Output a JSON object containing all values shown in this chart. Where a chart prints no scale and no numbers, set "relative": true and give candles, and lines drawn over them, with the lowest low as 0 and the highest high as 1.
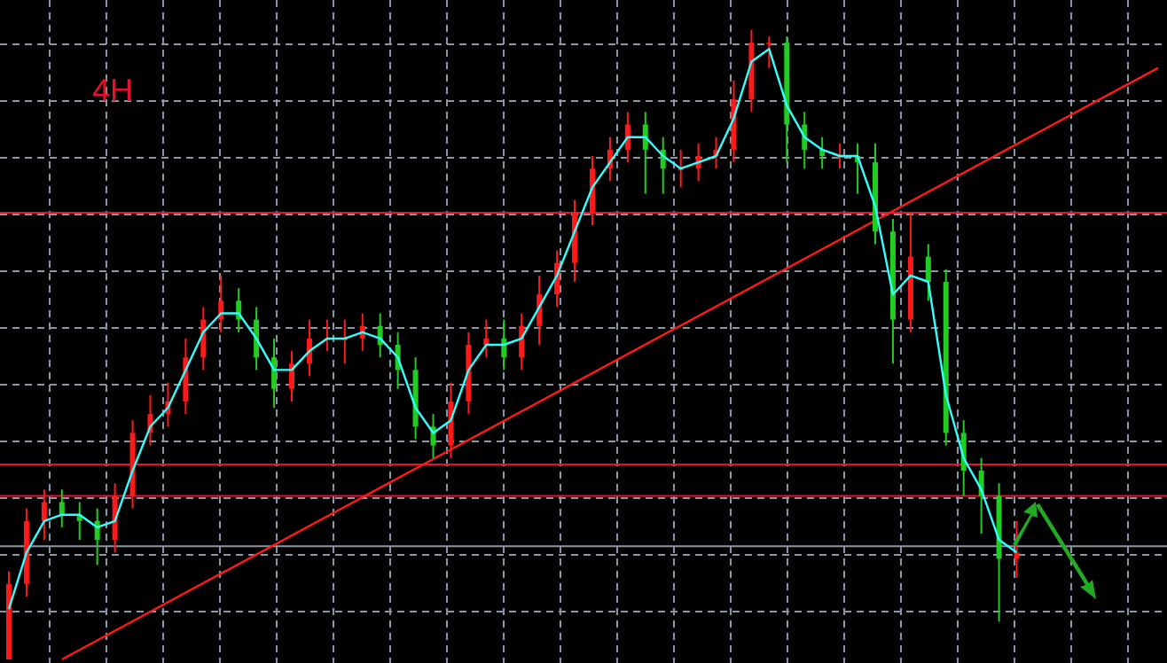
{
  "chart_data": {
    "type": "candlestick",
    "relative": true,
    "grid": true,
    "annotations": [
      "4H"
    ],
    "categories": [
      null,
      null,
      null,
      null,
      null,
      null,
      null,
      null,
      null,
      null,
      null,
      null,
      null,
      null,
      null,
      null,
      null,
      null,
      null,
      null,
      null,
      null,
      null,
      null,
      null,
      null,
      null,
      null,
      null,
      null,
      null,
      null,
      null,
      null,
      null,
      null,
      null,
      null,
      null,
      null,
      null,
      null,
      null,
      null,
      null,
      null,
      null,
      null,
      null,
      null,
      null,
      null,
      null,
      null,
      null,
      null,
      null,
      null,
      null,
      null,
      null,
      null,
      null,
      null,
      null,
      null
    ],
    "ohlc": [
      [
        0,
        0.14,
        0,
        0.12
      ],
      [
        0.12,
        0.24,
        0.1,
        0.22
      ],
      [
        0.22,
        0.27,
        0.19,
        0.25
      ],
      [
        0.25,
        0.27,
        0.21,
        0.23
      ],
      [
        0.23,
        0.25,
        0.19,
        0.22
      ],
      [
        0.22,
        0.24,
        0.15,
        0.19
      ],
      [
        0.19,
        0.28,
        0.17,
        0.26
      ],
      [
        0.26,
        0.38,
        0.24,
        0.36
      ],
      [
        0.36,
        0.42,
        0.34,
        0.39
      ],
      [
        0.39,
        0.44,
        0.37,
        0.41
      ],
      [
        0.41,
        0.51,
        0.39,
        0.48
      ],
      [
        0.48,
        0.56,
        0.46,
        0.54
      ],
      [
        0.54,
        0.61,
        0.52,
        0.57
      ],
      [
        0.57,
        0.59,
        0.52,
        0.54
      ],
      [
        0.54,
        0.56,
        0.46,
        0.48
      ],
      [
        0.48,
        0.51,
        0.4,
        0.43
      ],
      [
        0.43,
        0.49,
        0.41,
        0.47
      ],
      [
        0.47,
        0.54,
        0.45,
        0.51
      ],
      [
        0.51,
        0.54,
        0.49,
        0.51
      ],
      [
        0.51,
        0.54,
        0.47,
        0.51
      ],
      [
        0.51,
        0.55,
        0.49,
        0.53
      ],
      [
        0.53,
        0.55,
        0.48,
        0.5
      ],
      [
        0.5,
        0.52,
        0.43,
        0.46
      ],
      [
        0.46,
        0.48,
        0.35,
        0.37
      ],
      [
        0.37,
        0.39,
        0.32,
        0.34
      ],
      [
        0.34,
        0.44,
        0.32,
        0.41
      ],
      [
        0.41,
        0.52,
        0.39,
        0.5
      ],
      [
        0.5,
        0.54,
        0.48,
        0.51
      ],
      [
        0.51,
        0.54,
        0.46,
        0.48
      ],
      [
        0.48,
        0.55,
        0.46,
        0.53
      ],
      [
        0.53,
        0.61,
        0.5,
        0.58
      ],
      [
        0.58,
        0.65,
        0.56,
        0.63
      ],
      [
        0.63,
        0.73,
        0.6,
        0.71
      ],
      [
        0.71,
        0.8,
        0.69,
        0.78
      ],
      [
        0.78,
        0.83,
        0.76,
        0.81
      ],
      [
        0.81,
        0.87,
        0.79,
        0.85
      ],
      [
        0.85,
        0.87,
        0.74,
        0.81
      ],
      [
        0.81,
        0.83,
        0.74,
        0.78
      ],
      [
        0.78,
        0.81,
        0.75,
        0.78
      ],
      [
        0.78,
        0.82,
        0.76,
        0.8
      ],
      [
        0.8,
        0.83,
        0.78,
        0.81
      ],
      [
        0.81,
        0.92,
        0.79,
        0.89
      ],
      [
        0.89,
        1,
        0.87,
        0.98
      ],
      [
        0.98,
        0.99,
        0.94,
        0.98
      ],
      [
        0.98,
        0.99,
        0.79,
        0.85
      ],
      [
        0.85,
        0.87,
        0.78,
        0.81
      ],
      [
        0.81,
        0.83,
        0.78,
        0.8
      ],
      [
        0.8,
        0.82,
        0.78,
        0.8
      ],
      [
        0.8,
        0.82,
        0.74,
        0.79
      ],
      [
        0.79,
        0.82,
        0.66,
        0.68
      ],
      [
        0.68,
        0.7,
        0.47,
        0.54
      ],
      [
        0.54,
        0.71,
        0.52,
        0.64
      ],
      [
        0.64,
        0.66,
        0.57,
        0.6
      ],
      [
        0.6,
        0.62,
        0.34,
        0.36
      ],
      [
        0.36,
        0.38,
        0.26,
        0.3
      ],
      [
        0.3,
        0.32,
        0.2,
        0.26
      ],
      [
        0.26,
        0.28,
        0.06,
        0.16
      ],
      [
        0.16,
        0.22,
        0.13,
        0.17
      ],
      null,
      null,
      null,
      null,
      null,
      null,
      null,
      null
    ],
    "series": [
      {
        "type": "line",
        "color": "#33ffff",
        "values": [
          0.08,
          0.17,
          0.22,
          0.23,
          0.23,
          0.21,
          0.22,
          0.3,
          0.37,
          0.4,
          0.46,
          0.52,
          0.55,
          0.55,
          0.51,
          0.46,
          0.46,
          0.49,
          0.51,
          0.51,
          0.52,
          0.51,
          0.48,
          0.4,
          0.36,
          0.38,
          0.46,
          0.5,
          0.5,
          0.51,
          0.56,
          0.61,
          0.68,
          0.75,
          0.79,
          0.83,
          0.83,
          0.8,
          0.78,
          0.79,
          0.8,
          0.86,
          0.95,
          0.97,
          0.88,
          0.83,
          0.81,
          0.8,
          0.8,
          0.72,
          0.58,
          0.61,
          0.6,
          0.42,
          0.32,
          0.27,
          0.19,
          0.17,
          null,
          null,
          null,
          null,
          null,
          null,
          null,
          null
        ]
      },
      {
        "type": "line",
        "color": "#ff1a1a",
        "values": [
          null,
          null,
          null,
          0.0,
          null,
          null,
          null,
          null,
          null,
          null,
          null,
          null,
          null,
          null,
          null,
          null,
          null,
          null,
          null,
          null,
          null,
          null,
          null,
          null,
          null,
          null,
          null,
          null,
          null,
          null,
          null,
          null,
          null,
          null,
          null,
          null,
          null,
          null,
          null,
          null,
          null,
          null,
          null,
          null,
          null,
          null,
          null,
          null,
          null,
          null,
          null,
          null,
          null,
          null,
          null,
          null,
          null,
          null,
          null,
          null,
          null,
          null,
          null,
          null,
          null,
          0.94
        ]
      }
    ],
    "ref_lines": [
      {
        "axis": "y",
        "value": 0.71,
        "color": "#e8102c"
      },
      {
        "axis": "y",
        "value": 0.31,
        "color": "#e8102c"
      },
      {
        "axis": "y",
        "value": 0.26,
        "color": "#e8102c"
      },
      {
        "axis": "y",
        "value": 0.18,
        "color": "#8a97a8"
      }
    ]
  }
}
